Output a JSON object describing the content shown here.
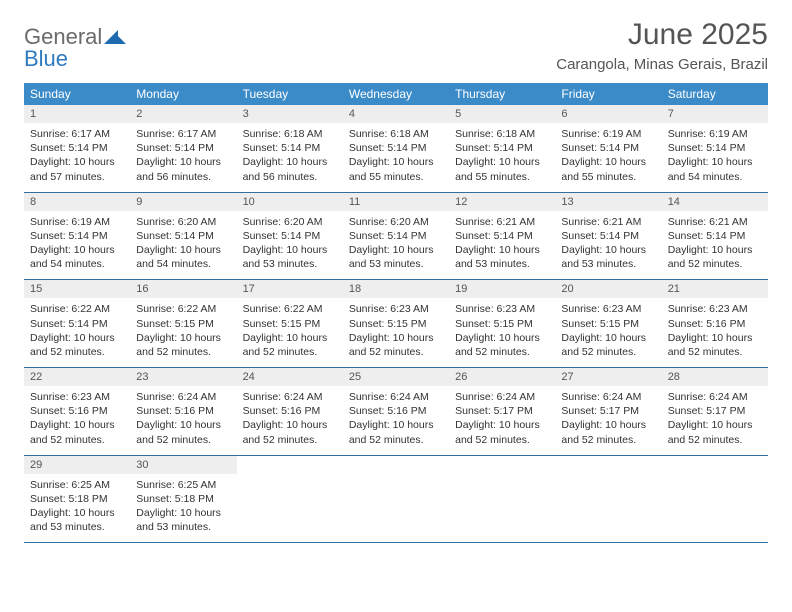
{
  "brand": {
    "part1": "General",
    "part2": "Blue"
  },
  "title": "June 2025",
  "location": "Carangola, Minas Gerais, Brazil",
  "colors": {
    "header_bg": "#3b8bc9",
    "header_text": "#ffffff",
    "daynum_bg": "#eeeeee",
    "border": "#2f6fa6",
    "brand_gray": "#6b6b6b",
    "brand_blue": "#2f7bbf"
  },
  "day_names": [
    "Sunday",
    "Monday",
    "Tuesday",
    "Wednesday",
    "Thursday",
    "Friday",
    "Saturday"
  ],
  "weeks": [
    [
      {
        "n": "1",
        "sr": "Sunrise: 6:17 AM",
        "ss": "Sunset: 5:14 PM",
        "dl": "Daylight: 10 hours and 57 minutes."
      },
      {
        "n": "2",
        "sr": "Sunrise: 6:17 AM",
        "ss": "Sunset: 5:14 PM",
        "dl": "Daylight: 10 hours and 56 minutes."
      },
      {
        "n": "3",
        "sr": "Sunrise: 6:18 AM",
        "ss": "Sunset: 5:14 PM",
        "dl": "Daylight: 10 hours and 56 minutes."
      },
      {
        "n": "4",
        "sr": "Sunrise: 6:18 AM",
        "ss": "Sunset: 5:14 PM",
        "dl": "Daylight: 10 hours and 55 minutes."
      },
      {
        "n": "5",
        "sr": "Sunrise: 6:18 AM",
        "ss": "Sunset: 5:14 PM",
        "dl": "Daylight: 10 hours and 55 minutes."
      },
      {
        "n": "6",
        "sr": "Sunrise: 6:19 AM",
        "ss": "Sunset: 5:14 PM",
        "dl": "Daylight: 10 hours and 55 minutes."
      },
      {
        "n": "7",
        "sr": "Sunrise: 6:19 AM",
        "ss": "Sunset: 5:14 PM",
        "dl": "Daylight: 10 hours and 54 minutes."
      }
    ],
    [
      {
        "n": "8",
        "sr": "Sunrise: 6:19 AM",
        "ss": "Sunset: 5:14 PM",
        "dl": "Daylight: 10 hours and 54 minutes."
      },
      {
        "n": "9",
        "sr": "Sunrise: 6:20 AM",
        "ss": "Sunset: 5:14 PM",
        "dl": "Daylight: 10 hours and 54 minutes."
      },
      {
        "n": "10",
        "sr": "Sunrise: 6:20 AM",
        "ss": "Sunset: 5:14 PM",
        "dl": "Daylight: 10 hours and 53 minutes."
      },
      {
        "n": "11",
        "sr": "Sunrise: 6:20 AM",
        "ss": "Sunset: 5:14 PM",
        "dl": "Daylight: 10 hours and 53 minutes."
      },
      {
        "n": "12",
        "sr": "Sunrise: 6:21 AM",
        "ss": "Sunset: 5:14 PM",
        "dl": "Daylight: 10 hours and 53 minutes."
      },
      {
        "n": "13",
        "sr": "Sunrise: 6:21 AM",
        "ss": "Sunset: 5:14 PM",
        "dl": "Daylight: 10 hours and 53 minutes."
      },
      {
        "n": "14",
        "sr": "Sunrise: 6:21 AM",
        "ss": "Sunset: 5:14 PM",
        "dl": "Daylight: 10 hours and 52 minutes."
      }
    ],
    [
      {
        "n": "15",
        "sr": "Sunrise: 6:22 AM",
        "ss": "Sunset: 5:14 PM",
        "dl": "Daylight: 10 hours and 52 minutes."
      },
      {
        "n": "16",
        "sr": "Sunrise: 6:22 AM",
        "ss": "Sunset: 5:15 PM",
        "dl": "Daylight: 10 hours and 52 minutes."
      },
      {
        "n": "17",
        "sr": "Sunrise: 6:22 AM",
        "ss": "Sunset: 5:15 PM",
        "dl": "Daylight: 10 hours and 52 minutes."
      },
      {
        "n": "18",
        "sr": "Sunrise: 6:23 AM",
        "ss": "Sunset: 5:15 PM",
        "dl": "Daylight: 10 hours and 52 minutes."
      },
      {
        "n": "19",
        "sr": "Sunrise: 6:23 AM",
        "ss": "Sunset: 5:15 PM",
        "dl": "Daylight: 10 hours and 52 minutes."
      },
      {
        "n": "20",
        "sr": "Sunrise: 6:23 AM",
        "ss": "Sunset: 5:15 PM",
        "dl": "Daylight: 10 hours and 52 minutes."
      },
      {
        "n": "21",
        "sr": "Sunrise: 6:23 AM",
        "ss": "Sunset: 5:16 PM",
        "dl": "Daylight: 10 hours and 52 minutes."
      }
    ],
    [
      {
        "n": "22",
        "sr": "Sunrise: 6:23 AM",
        "ss": "Sunset: 5:16 PM",
        "dl": "Daylight: 10 hours and 52 minutes."
      },
      {
        "n": "23",
        "sr": "Sunrise: 6:24 AM",
        "ss": "Sunset: 5:16 PM",
        "dl": "Daylight: 10 hours and 52 minutes."
      },
      {
        "n": "24",
        "sr": "Sunrise: 6:24 AM",
        "ss": "Sunset: 5:16 PM",
        "dl": "Daylight: 10 hours and 52 minutes."
      },
      {
        "n": "25",
        "sr": "Sunrise: 6:24 AM",
        "ss": "Sunset: 5:16 PM",
        "dl": "Daylight: 10 hours and 52 minutes."
      },
      {
        "n": "26",
        "sr": "Sunrise: 6:24 AM",
        "ss": "Sunset: 5:17 PM",
        "dl": "Daylight: 10 hours and 52 minutes."
      },
      {
        "n": "27",
        "sr": "Sunrise: 6:24 AM",
        "ss": "Sunset: 5:17 PM",
        "dl": "Daylight: 10 hours and 52 minutes."
      },
      {
        "n": "28",
        "sr": "Sunrise: 6:24 AM",
        "ss": "Sunset: 5:17 PM",
        "dl": "Daylight: 10 hours and 52 minutes."
      }
    ],
    [
      {
        "n": "29",
        "sr": "Sunrise: 6:25 AM",
        "ss": "Sunset: 5:18 PM",
        "dl": "Daylight: 10 hours and 53 minutes."
      },
      {
        "n": "30",
        "sr": "Sunrise: 6:25 AM",
        "ss": "Sunset: 5:18 PM",
        "dl": "Daylight: 10 hours and 53 minutes."
      },
      {
        "empty": true
      },
      {
        "empty": true
      },
      {
        "empty": true
      },
      {
        "empty": true
      },
      {
        "empty": true
      }
    ]
  ]
}
